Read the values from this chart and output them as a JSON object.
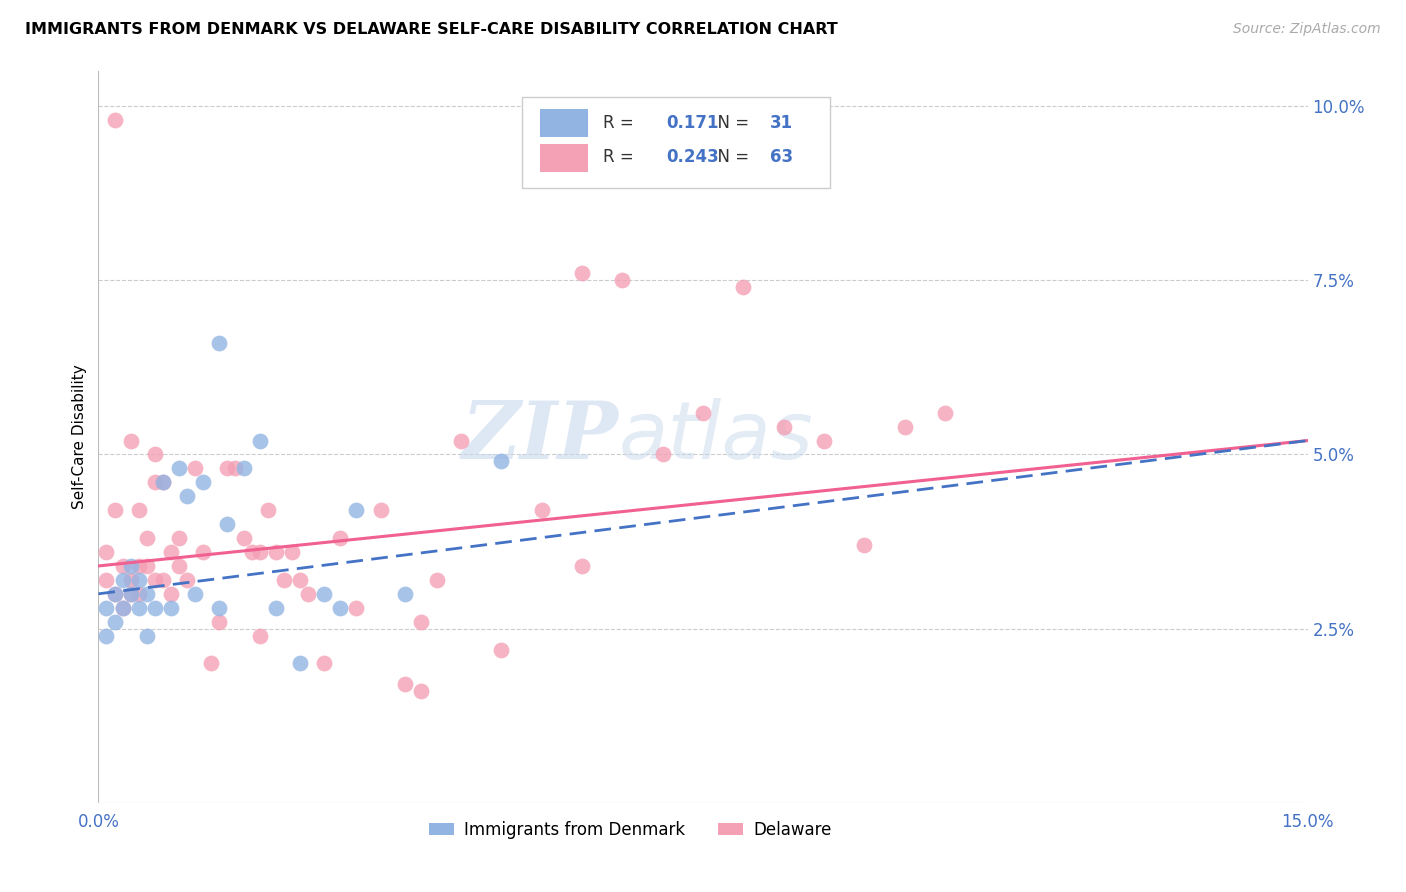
{
  "title": "IMMIGRANTS FROM DENMARK VS DELAWARE SELF-CARE DISABILITY CORRELATION CHART",
  "source": "Source: ZipAtlas.com",
  "ylabel": "Self-Care Disability",
  "xlim": [
    0.0,
    0.15
  ],
  "ylim": [
    0.0,
    0.105
  ],
  "y_ticks_right": [
    0.025,
    0.05,
    0.075,
    0.1
  ],
  "y_tick_labels_right": [
    "2.5%",
    "5.0%",
    "7.5%",
    "10.0%"
  ],
  "denmark_color": "#92b4e3",
  "delaware_color": "#f4a0b5",
  "denmark_line_color": "#4472c4",
  "delaware_line_color": "#f06090",
  "denmark_R": 0.171,
  "denmark_N": 31,
  "delaware_R": 0.243,
  "delaware_N": 63,
  "watermark_zip": "ZIP",
  "watermark_atlas": "atlas",
  "denmark_scatter_x": [
    0.001,
    0.001,
    0.002,
    0.002,
    0.003,
    0.003,
    0.004,
    0.004,
    0.005,
    0.005,
    0.006,
    0.006,
    0.007,
    0.008,
    0.009,
    0.01,
    0.011,
    0.012,
    0.013,
    0.015,
    0.016,
    0.018,
    0.02,
    0.022,
    0.025,
    0.028,
    0.03,
    0.032,
    0.038,
    0.05,
    0.015
  ],
  "denmark_scatter_y": [
    0.028,
    0.024,
    0.03,
    0.026,
    0.028,
    0.032,
    0.03,
    0.034,
    0.028,
    0.032,
    0.024,
    0.03,
    0.028,
    0.046,
    0.028,
    0.048,
    0.044,
    0.03,
    0.046,
    0.028,
    0.04,
    0.048,
    0.052,
    0.028,
    0.02,
    0.03,
    0.028,
    0.042,
    0.03,
    0.049,
    0.066
  ],
  "delaware_scatter_x": [
    0.001,
    0.001,
    0.002,
    0.002,
    0.003,
    0.003,
    0.004,
    0.004,
    0.004,
    0.005,
    0.005,
    0.005,
    0.006,
    0.006,
    0.007,
    0.007,
    0.007,
    0.008,
    0.008,
    0.009,
    0.009,
    0.01,
    0.01,
    0.011,
    0.012,
    0.013,
    0.014,
    0.015,
    0.016,
    0.017,
    0.018,
    0.019,
    0.02,
    0.021,
    0.022,
    0.023,
    0.024,
    0.025,
    0.026,
    0.028,
    0.03,
    0.032,
    0.035,
    0.038,
    0.04,
    0.042,
    0.045,
    0.05,
    0.055,
    0.06,
    0.065,
    0.07,
    0.075,
    0.08,
    0.085,
    0.09,
    0.095,
    0.1,
    0.105,
    0.04,
    0.06,
    0.02,
    0.002
  ],
  "delaware_scatter_y": [
    0.032,
    0.036,
    0.03,
    0.042,
    0.028,
    0.034,
    0.03,
    0.032,
    0.052,
    0.03,
    0.034,
    0.042,
    0.034,
    0.038,
    0.032,
    0.05,
    0.046,
    0.032,
    0.046,
    0.03,
    0.036,
    0.034,
    0.038,
    0.032,
    0.048,
    0.036,
    0.02,
    0.026,
    0.048,
    0.048,
    0.038,
    0.036,
    0.024,
    0.042,
    0.036,
    0.032,
    0.036,
    0.032,
    0.03,
    0.02,
    0.038,
    0.028,
    0.042,
    0.017,
    0.016,
    0.032,
    0.052,
    0.022,
    0.042,
    0.076,
    0.075,
    0.05,
    0.056,
    0.074,
    0.054,
    0.052,
    0.037,
    0.054,
    0.056,
    0.026,
    0.034,
    0.036,
    0.098
  ],
  "dk_line_x0": 0.0,
  "dk_line_y0": 0.03,
  "dk_line_x1": 0.15,
  "dk_line_y1": 0.052,
  "dl_line_x0": 0.0,
  "dl_line_y0": 0.034,
  "dl_line_x1": 0.15,
  "dl_line_y1": 0.052
}
